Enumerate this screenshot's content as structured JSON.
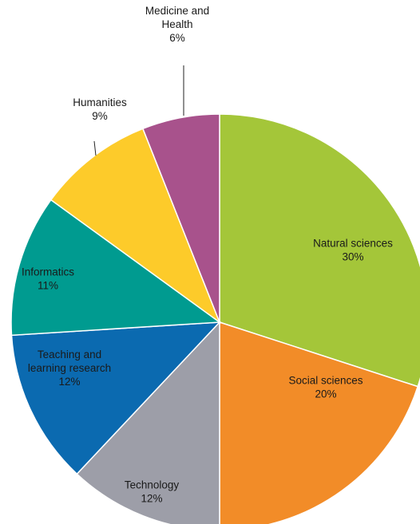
{
  "chart_data": {
    "type": "pie",
    "title": "",
    "slices": [
      {
        "label_lines": [
          "Natural sciences"
        ],
        "value_label": "30%",
        "value": 30,
        "color": "#a4c639"
      },
      {
        "label_lines": [
          "Social sciences"
        ],
        "value_label": "20%",
        "value": 20,
        "color": "#f28c28"
      },
      {
        "label_lines": [
          "Technology"
        ],
        "value_label": "12%",
        "value": 12,
        "color": "#9d9ea8"
      },
      {
        "label_lines": [
          "Teaching and",
          "learning research"
        ],
        "value_label": "12%",
        "value": 12,
        "color": "#0b6ab0"
      },
      {
        "label_lines": [
          "Informatics"
        ],
        "value_label": "11%",
        "value": 11,
        "color": "#009b90"
      },
      {
        "label_lines": [
          "Humanities"
        ],
        "value_label": "9%",
        "value": 9,
        "color": "#fdcb2a"
      },
      {
        "label_lines": [
          "Medicine and",
          "Health"
        ],
        "value_label": "6%",
        "value": 6,
        "color": "#a8528c"
      }
    ],
    "legend": "none",
    "label_placement": "inside, except Humanities and Medicine and Health which use outside callouts with leader lines"
  }
}
